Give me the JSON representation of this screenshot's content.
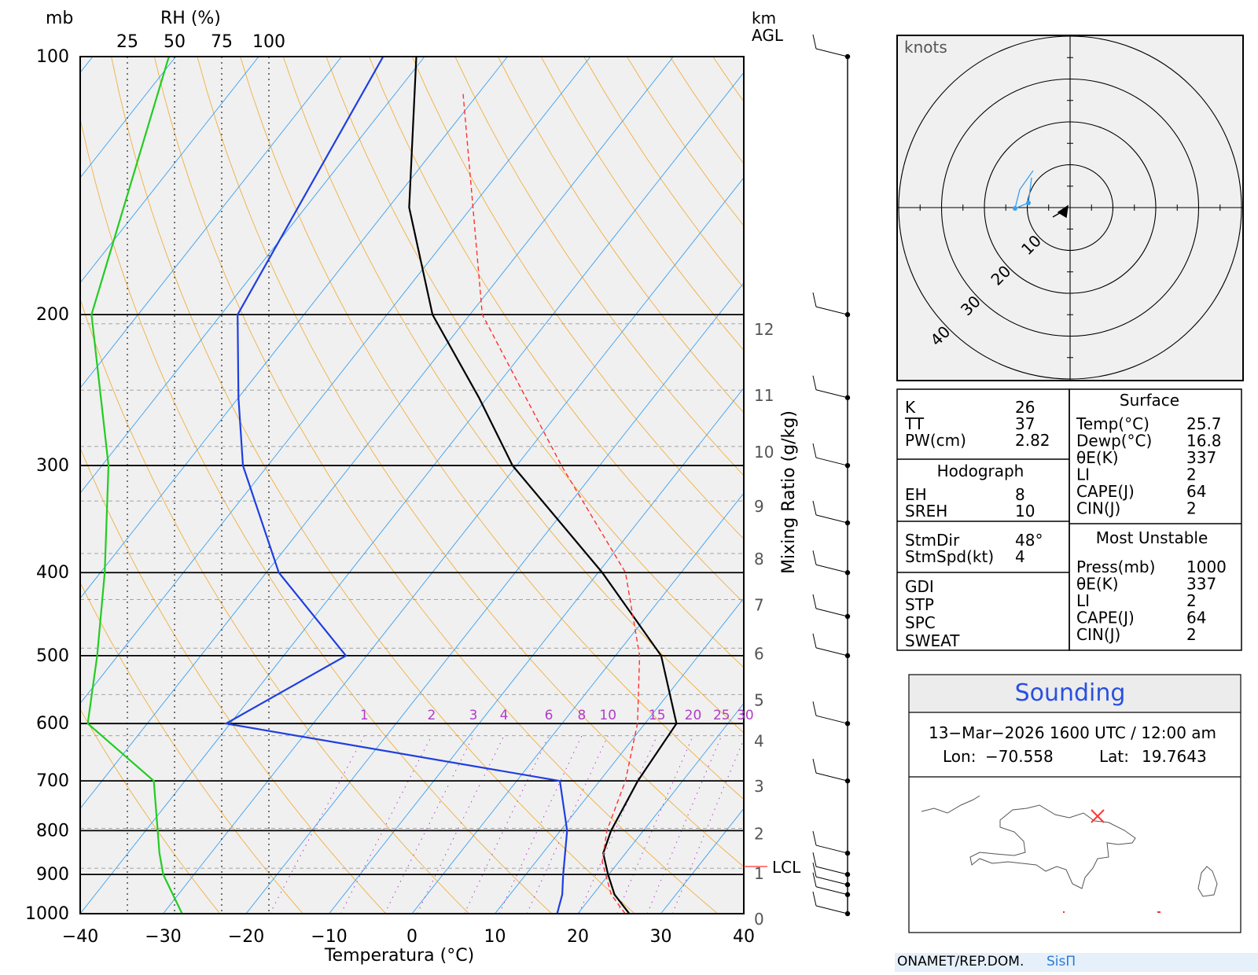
{
  "skewt": {
    "pressure_unit": "mb",
    "rh_label": "RH (%)",
    "rh_ticks": [
      "25",
      "50",
      "75",
      "100"
    ],
    "km_label": "km",
    "agl_label": "AGL",
    "xlabel": "Temperatura (°C)",
    "mixing_label": "Mixing Ratio (g/kg)",
    "lcl_label": "LCL",
    "pressure_levels": [
      "100",
      "200",
      "300",
      "400",
      "500",
      "600",
      "700",
      "800",
      "900",
      "1000"
    ],
    "temp_ticks": [
      "−40",
      "−30",
      "−20",
      "−10",
      "0",
      "10",
      "20",
      "30",
      "40"
    ],
    "height_labels": [
      "0",
      "1",
      "2",
      "3",
      "4",
      "5",
      "6",
      "7",
      "8",
      "9",
      "10",
      "11",
      "12"
    ],
    "mixing_ratio_labels": [
      "1",
      "2",
      "3",
      "4",
      "6",
      "8",
      "10",
      "15",
      "20",
      "25",
      "30"
    ]
  },
  "chart_data": {
    "type": "line",
    "title": "",
    "xlabel": "Temperatura (°C)",
    "ylabel": "mb",
    "xlim": [
      -40,
      40
    ],
    "ylim": [
      1000,
      100
    ],
    "y_scale": "log-pressure",
    "x_skew": "skew-T",
    "series": [
      {
        "name": "Temperature",
        "color": "#000000",
        "points": [
          [
            1000,
            26.2
          ],
          [
            950,
            22.6
          ],
          [
            900,
            19.9
          ],
          [
            850,
            17.3
          ],
          [
            800,
            16.1
          ],
          [
            700,
            14.6
          ],
          [
            600,
            13.8
          ],
          [
            500,
            5.5
          ],
          [
            400,
            -9.5
          ],
          [
            300,
            -30.5
          ],
          [
            250,
            -41.0
          ],
          [
            200,
            -54.5
          ],
          [
            150,
            -67.5
          ],
          [
            100,
            -81.0
          ]
        ]
      },
      {
        "name": "Dewpoint",
        "color": "#1f3fe0",
        "points": [
          [
            1000,
            17.5
          ],
          [
            950,
            16.3
          ],
          [
            900,
            14.5
          ],
          [
            800,
            10.8
          ],
          [
            700,
            5.2
          ],
          [
            600,
            -40.5
          ],
          [
            500,
            -32.5
          ],
          [
            400,
            -48.5
          ],
          [
            300,
            -63.0
          ],
          [
            250,
            -70.0
          ],
          [
            200,
            -78.0
          ],
          [
            100,
            -85.0
          ]
        ]
      },
      {
        "name": "Parcel",
        "color": "#ff3030",
        "dashed": true,
        "points": [
          [
            1000,
            25.7
          ],
          [
            950,
            22.2
          ],
          [
            870,
            18.0
          ],
          [
            800,
            15.6
          ],
          [
            700,
            13.1
          ],
          [
            600,
            9.1
          ],
          [
            500,
            2.9
          ],
          [
            400,
            -6.7
          ],
          [
            300,
            -24.6
          ],
          [
            200,
            -48.5
          ],
          [
            110,
            -72.0
          ]
        ]
      },
      {
        "name": "RH",
        "color": "#22cc22",
        "points": [
          [
            1000,
            54
          ],
          [
            900,
            44
          ],
          [
            850,
            42
          ],
          [
            700,
            39
          ],
          [
            600,
            4
          ],
          [
            500,
            9
          ],
          [
            400,
            13
          ],
          [
            300,
            15
          ],
          [
            200,
            6
          ],
          [
            100,
            47
          ]
        ]
      }
    ],
    "km_agl": [
      0,
      1,
      2,
      3,
      4,
      5,
      6,
      7,
      8,
      9,
      10,
      11,
      12
    ],
    "lcl_mb": 880,
    "wind_barbs_pressure_mb": [
      100,
      200,
      250,
      300,
      350,
      400,
      450,
      500,
      600,
      700,
      850,
      900,
      925,
      950,
      1000
    ]
  },
  "hodograph": {
    "units_label": "knots",
    "rings": [
      "10",
      "20",
      "30",
      "40"
    ]
  },
  "indices": {
    "rows": [
      {
        "label": "K",
        "value": "26"
      },
      {
        "label": "TT",
        "value": "37"
      },
      {
        "label": "PW(cm)",
        "value": "2.82"
      }
    ],
    "hodograph_header": "Hodograph",
    "hodograph_rows": [
      {
        "label": "EH",
        "value": "8"
      },
      {
        "label": "SREH",
        "value": "10"
      }
    ],
    "storm_rows": [
      {
        "label": "StmDir",
        "value": "48°"
      },
      {
        "label": "StmSpd(kt)",
        "value": "4"
      }
    ],
    "other_rows": [
      "GDI",
      "STP",
      "SPC",
      "SWEAT"
    ]
  },
  "surface": {
    "header": "Surface",
    "rows": [
      {
        "label": "Temp(°C)",
        "value": "25.7"
      },
      {
        "label": "Dewp(°C)",
        "value": "16.8"
      },
      {
        "label": "θE(K)",
        "value": "337"
      },
      {
        "label": "LI",
        "value": "2"
      },
      {
        "label": "CAPE(J)",
        "value": "64"
      },
      {
        "label": "CIN(J)",
        "value": "2"
      }
    ]
  },
  "most_unstable": {
    "header": "Most Unstable",
    "rows": [
      {
        "label": "Press(mb)",
        "value": "1000"
      },
      {
        "label": "θE(K)",
        "value": "337"
      },
      {
        "label": "LI",
        "value": "2"
      },
      {
        "label": "CAPE(J)",
        "value": "64"
      },
      {
        "label": "CIN(J)",
        "value": "2"
      }
    ]
  },
  "sounding": {
    "title": "Sounding",
    "datetime": "13−Mar−2026 1600 UTC / 12:00 am",
    "lon_label": "Lon:",
    "lon_value": "−70.558",
    "lat_label": "Lat:",
    "lat_value": "19.7643"
  },
  "footer": {
    "org": "ONAMET/REP.DOM.",
    "logo": "SisΠ"
  },
  "colors": {
    "temperature": "#000000",
    "dewpoint": "#1f3fe0",
    "parcel": "#ff3030",
    "rh": "#22cc22",
    "isotherm": "#3aa0f0",
    "dry_adiabat": "#f0b040",
    "mixing_ratio": "#b03cc8",
    "sounding_title": "#2a50e0"
  }
}
